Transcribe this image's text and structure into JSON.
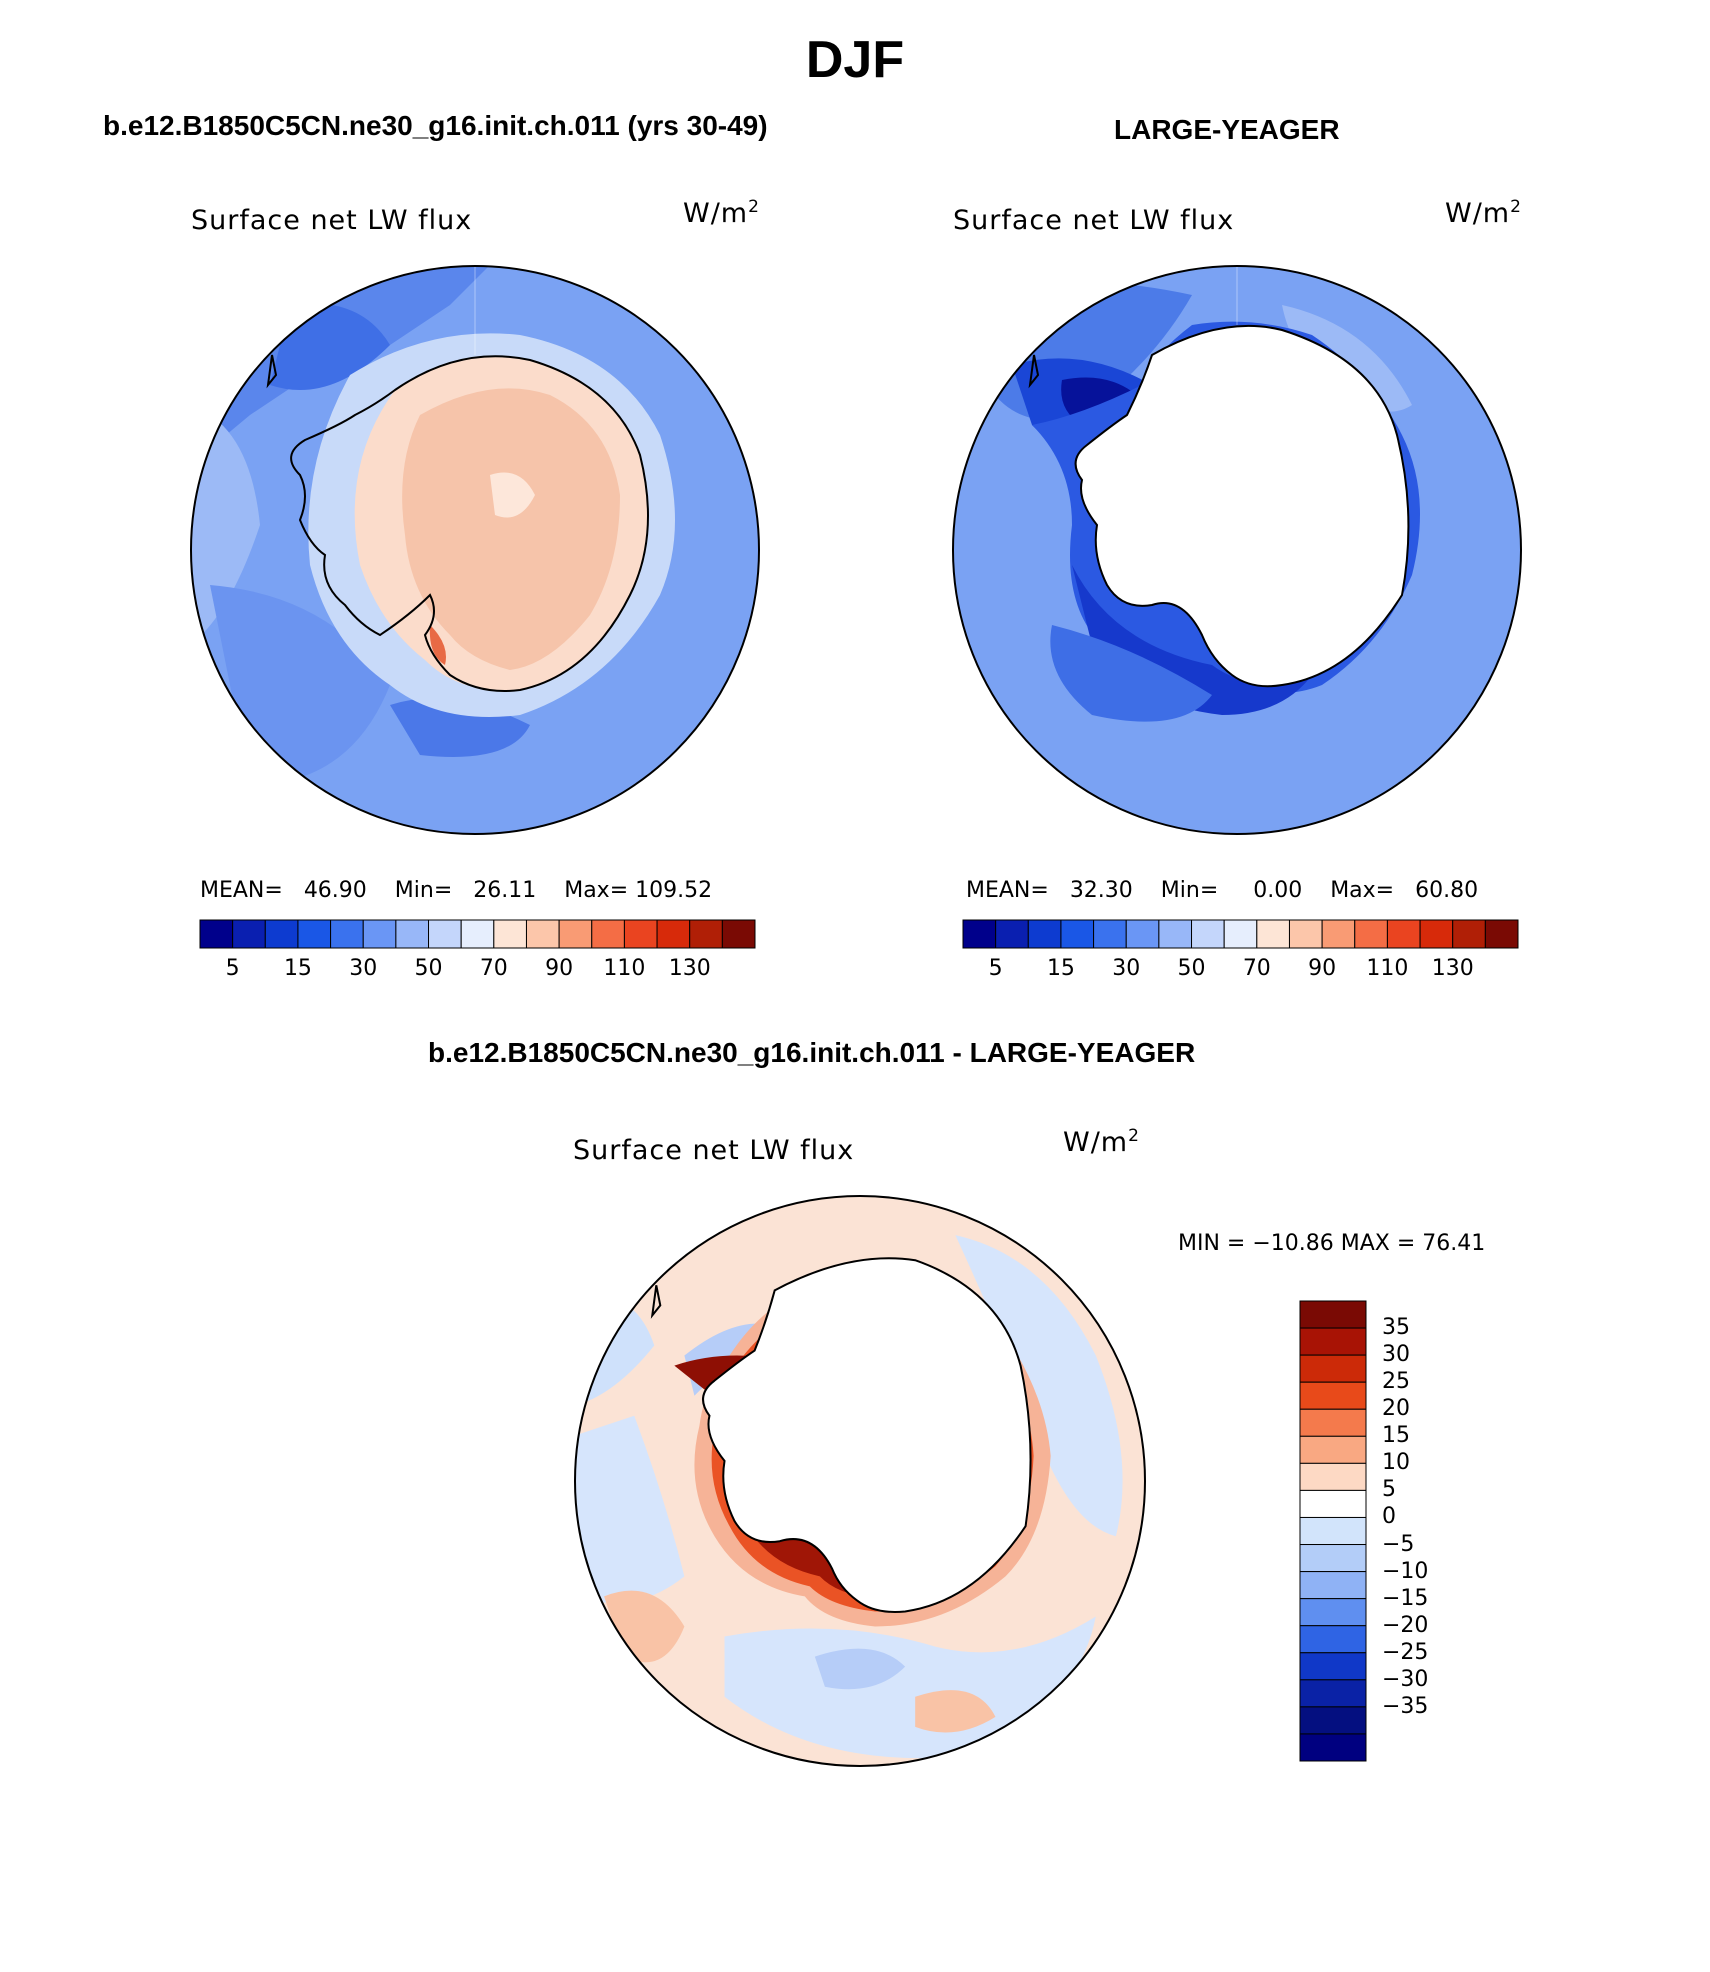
{
  "figure": {
    "title": "DJF",
    "variable": "Surface net LW flux",
    "units_base": "W/m",
    "units_exp": "2"
  },
  "panels": [
    {
      "case": "b.e12.B1850C5CN.ne30_g16.init.ch.011 (yrs 30-49)",
      "stats": {
        "mean_label": "MEAN=",
        "mean": "46.90",
        "min_label": "Min=",
        "min": "26.11",
        "max_label": "Max=",
        "max": "109.52"
      },
      "field": "case"
    },
    {
      "case": "LARGE-YEAGER",
      "stats": {
        "mean_label": "MEAN=",
        "mean": "32.30",
        "min_label": "Min=",
        "min": "0.00",
        "max_label": "Max=",
        "max": "60.80"
      },
      "field": "obs"
    }
  ],
  "diff_panel": {
    "title": "b.e12.B1850C5CN.ne30_g16.init.ch.011 - LARGE-YEAGER",
    "minmax": "MIN = −10.86 MAX =   76.41"
  },
  "colorbar_abs": {
    "colors": [
      "#00008b",
      "#0a1fb0",
      "#0d3bd0",
      "#1a57e6",
      "#3a72ee",
      "#6a96f5",
      "#98b7f8",
      "#c4d6fb",
      "#e6eefd",
      "#fde5d6",
      "#fcc6aa",
      "#f99b74",
      "#f46d45",
      "#ea4420",
      "#d72a0a",
      "#b01f06",
      "#7a0a04"
    ],
    "tick_labels": [
      "5",
      "15",
      "30",
      "50",
      "70",
      "90",
      "110",
      "130"
    ]
  },
  "colorbar_diff": {
    "colors": [
      "#7a0a04",
      "#a81305",
      "#cc2a08",
      "#e84a1a",
      "#f47a4c",
      "#f9a882",
      "#fdd9c4",
      "#ffffff",
      "#d2e4fb",
      "#b3cdf8",
      "#8fb2f5",
      "#5f8ff0",
      "#2f64e4",
      "#1038c8",
      "#0a22a6",
      "#040f80",
      "#000080"
    ],
    "tick_labels": [
      "35",
      "30",
      "25",
      "20",
      "15",
      "10",
      "5",
      "0",
      "−5",
      "−10",
      "−15",
      "−20",
      "−25",
      "−30",
      "−35"
    ]
  }
}
